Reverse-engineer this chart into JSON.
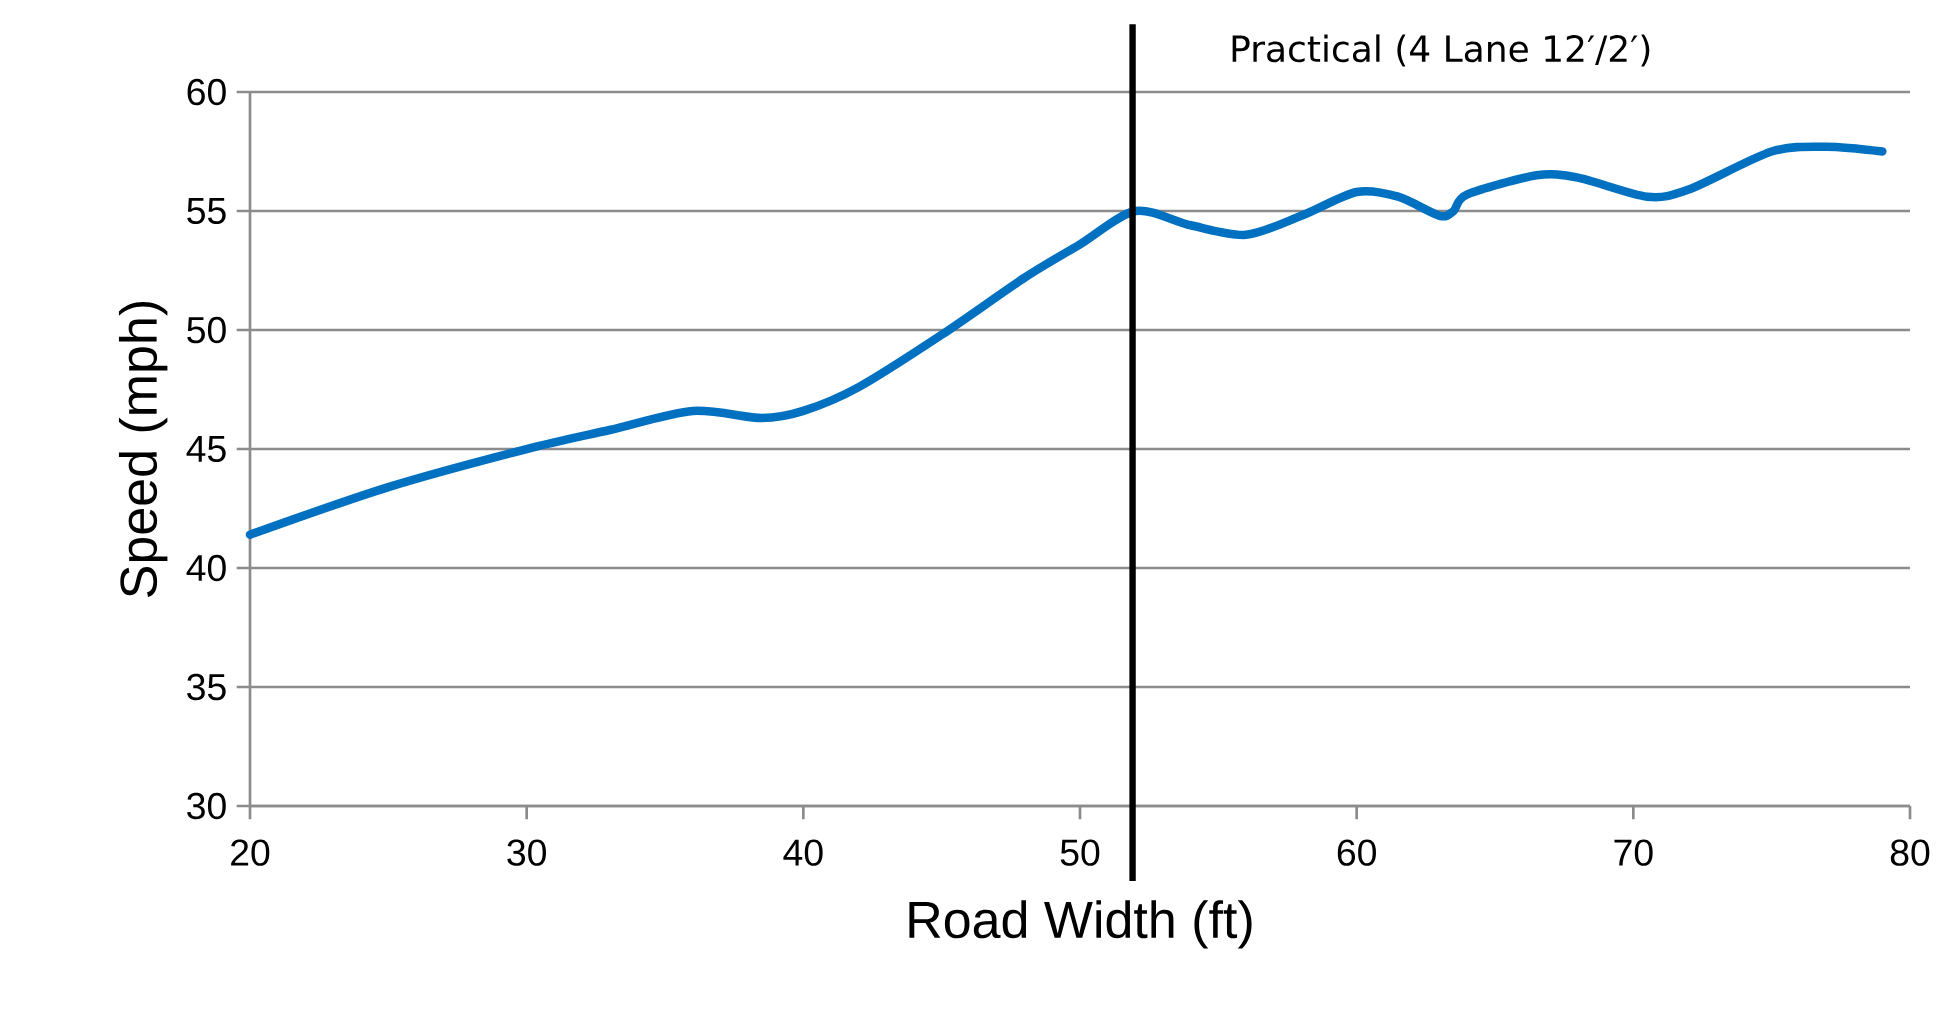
{
  "chart_data": {
    "type": "line",
    "xlabel": "Road Width (ft)",
    "ylabel": "Speed  (mph)",
    "x": [
      20,
      25,
      30,
      33,
      36,
      38.5,
      40,
      42,
      45,
      48,
      50,
      52,
      54,
      56,
      58,
      60,
      61.5,
      63,
      63.5,
      64,
      66.5,
      68,
      70.5,
      72,
      75,
      77,
      79
    ],
    "series": [
      {
        "color": "#0070c0",
        "values": [
          41.4,
          43.4,
          45.0,
          45.8,
          46.6,
          46.3,
          46.6,
          47.6,
          49.8,
          52.2,
          53.6,
          55.0,
          54.4,
          54.0,
          54.8,
          55.8,
          55.6,
          54.8,
          55.0,
          55.7,
          56.5,
          56.4,
          55.6,
          55.9,
          57.5,
          57.7,
          57.5
        ]
      }
    ],
    "xlim": [
      20,
      80
    ],
    "ylim": [
      30,
      60
    ],
    "xticks": [
      20,
      30,
      40,
      50,
      60,
      70,
      80
    ],
    "yticks": [
      30,
      35,
      40,
      45,
      50,
      55,
      60
    ],
    "grid": "y",
    "marker": "none",
    "line_style": "solid",
    "ref_lines": [
      {
        "axis": "x",
        "value": 51.9,
        "label": "Practical (4 Lane 12′/2′)",
        "color": "#000000"
      }
    ]
  }
}
